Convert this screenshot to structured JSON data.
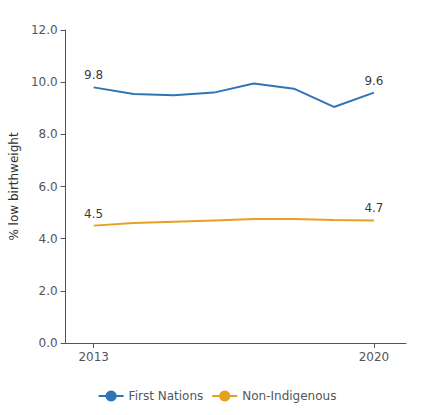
{
  "chart_data": {
    "type": "line",
    "x": [
      2013,
      2014,
      2015,
      2016,
      2017,
      2018,
      2019,
      2020
    ],
    "series": [
      {
        "name": "First Nations",
        "color": "#2E75B6",
        "values": [
          9.8,
          9.55,
          9.5,
          9.6,
          9.95,
          9.75,
          9.05,
          9.6
        ]
      },
      {
        "name": "Non-Indigenous",
        "color": "#E8A020",
        "values": [
          4.5,
          4.6,
          4.65,
          4.7,
          4.75,
          4.75,
          4.72,
          4.7
        ]
      }
    ],
    "ylabel": "% low birthweight",
    "xlim": [
      2012.3,
      2020.8
    ],
    "xticks": [
      2013,
      2020
    ],
    "ylim": [
      0,
      12.0
    ],
    "yticks": [
      {
        "value": 0,
        "label": "0.0"
      },
      {
        "value": 2,
        "label": "2.0"
      },
      {
        "value": 4,
        "label": "4.0"
      },
      {
        "value": 6,
        "label": "6.0"
      },
      {
        "value": 8,
        "label": "8.0"
      },
      {
        "value": 10,
        "label": "10.0"
      },
      {
        "value": 12,
        "label": "12.0"
      }
    ],
    "grid": false,
    "legend": "bottom",
    "annotations": [
      {
        "x": 2013,
        "y": 9.8,
        "text": "9.8"
      },
      {
        "x": 2020,
        "y": 9.6,
        "text": "9.6"
      },
      {
        "x": 2013,
        "y": 4.5,
        "text": "4.5"
      },
      {
        "x": 2020,
        "y": 4.7,
        "text": "4.7"
      }
    ]
  }
}
